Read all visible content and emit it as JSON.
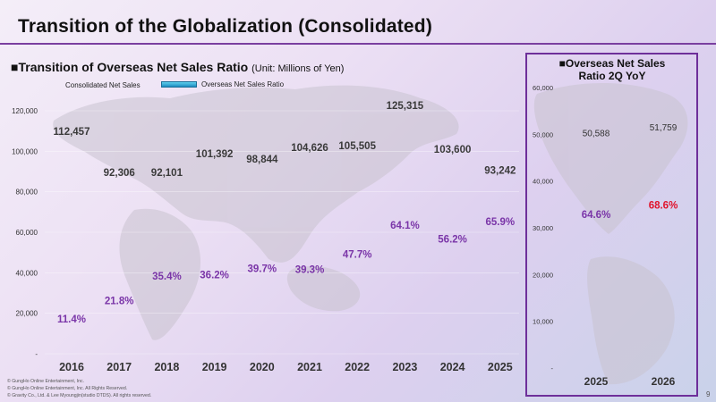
{
  "header": {
    "title": "Transition of the Globalization (Consolidated)"
  },
  "left_chart": {
    "subtitle_prefix": "■",
    "subtitle": "Transition of Overseas Net Sales Ratio",
    "unit": "(Unit: Millions of Yen)",
    "legend_sales": "Consolidated Net Sales",
    "legend_ratio": "Overseas Net Sales Ratio"
  },
  "right_chart": {
    "title_line1": "■Overseas Net Sales",
    "title_line2": "Ratio 2Q YoY"
  },
  "page_number": "9",
  "copyright": [
    "© GungHo Online Entertainment, Inc.",
    "© GungHo Online Entertainment, Inc. All Rights Reserved.",
    "© Gravity Co., Ltd. & Lee Myoungjin(studio DTDS). All rights reserved."
  ],
  "colors": {
    "title_rule": "#7a3fa0",
    "value_label": "#3a3a3a",
    "ratio_label": "#7a35a8",
    "ratio_highlight": "#e0142c",
    "panel_border": "#6e2f9a"
  },
  "chart_data": [
    {
      "type": "bar",
      "categories": [
        "2016",
        "2017",
        "2018",
        "2019",
        "2020",
        "2021",
        "2022",
        "2023",
        "2024",
        "2025"
      ],
      "series": [
        {
          "name": "Consolidated Net Sales",
          "values": [
            112457,
            92306,
            92101,
            101392,
            98844,
            104626,
            105505,
            125315,
            103600,
            93242
          ],
          "labels": [
            "112,457",
            "92,306",
            "92,101",
            "101,392",
            "98,844",
            "104,626",
            "105,505",
            "125,315",
            "103,600",
            "93,242"
          ]
        },
        {
          "name": "Overseas Net Sales Ratio",
          "values": [
            11.4,
            21.8,
            35.4,
            36.2,
            39.7,
            39.3,
            47.7,
            64.1,
            56.2,
            65.9
          ],
          "labels": [
            "11.4%",
            "21.8%",
            "35.4%",
            "36.2%",
            "39.7%",
            "39.3%",
            "47.7%",
            "64.1%",
            "56.2%",
            "65.9%"
          ]
        }
      ],
      "ylim": [
        0,
        120000
      ],
      "yticks": [
        0,
        20000,
        40000,
        60000,
        80000,
        100000,
        120000
      ],
      "ytick_labels": [
        "-",
        "20,000",
        "40,000",
        "60,000",
        "80,000",
        "100,000",
        "120,000"
      ]
    },
    {
      "type": "bar",
      "categories": [
        "2025",
        "2026"
      ],
      "series": [
        {
          "name": "Consolidated Net Sales",
          "values": [
            50588,
            51759
          ],
          "labels": [
            "50,588",
            "51,759"
          ]
        },
        {
          "name": "Overseas Net Sales Ratio",
          "values": [
            64.6,
            68.6
          ],
          "labels": [
            "64.6%",
            "68.6%"
          ]
        }
      ],
      "ylim": [
        0,
        60000
      ],
      "yticks": [
        0,
        10000,
        20000,
        30000,
        40000,
        50000,
        60000
      ],
      "ytick_labels": [
        "-",
        "10,000",
        "20,000",
        "30,000",
        "40,000",
        "50,000",
        "60,000"
      ]
    }
  ]
}
